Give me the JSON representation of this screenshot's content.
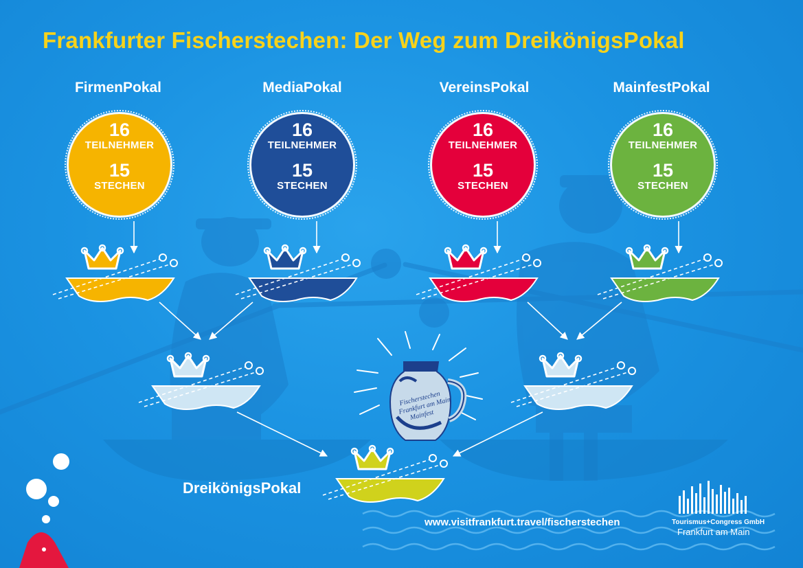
{
  "title": "Frankfurter Fischerstechen: Der Weg zum DreikönigsPokal",
  "cups": [
    {
      "name": "FirmenPokal",
      "color": "#f6b400",
      "participants": "16",
      "participants_label": "TEILNEHMER",
      "jousts": "15",
      "jousts_label": "STECHEN"
    },
    {
      "name": "MediaPokal",
      "color": "#1f4e99",
      "participants": "16",
      "participants_label": "TEILNEHMER",
      "jousts": "15",
      "jousts_label": "STECHEN"
    },
    {
      "name": "VereinsPokal",
      "color": "#e4003b",
      "participants": "16",
      "participants_label": "TEILNEHMER",
      "jousts": "15",
      "jousts_label": "STECHEN"
    },
    {
      "name": "MainfestPokal",
      "color": "#6cb33f",
      "participants": "16",
      "participants_label": "TEILNEHMER",
      "jousts": "15",
      "jousts_label": "STECHEN"
    }
  ],
  "semifinal_color": "#cfe6f4",
  "final": {
    "name": "DreikönigsPokal",
    "color": "#d0d21c"
  },
  "trophy_jug": {
    "line1": "Fischerstechen",
    "line2": "Frankfurt am Main",
    "line3": "Mainfest"
  },
  "url": "www.visitfrankfurt.travel/fischerstechen",
  "logo": {
    "line1": "Tourismus+Congress GmbH",
    "line2": "Frankfurt am Main"
  }
}
